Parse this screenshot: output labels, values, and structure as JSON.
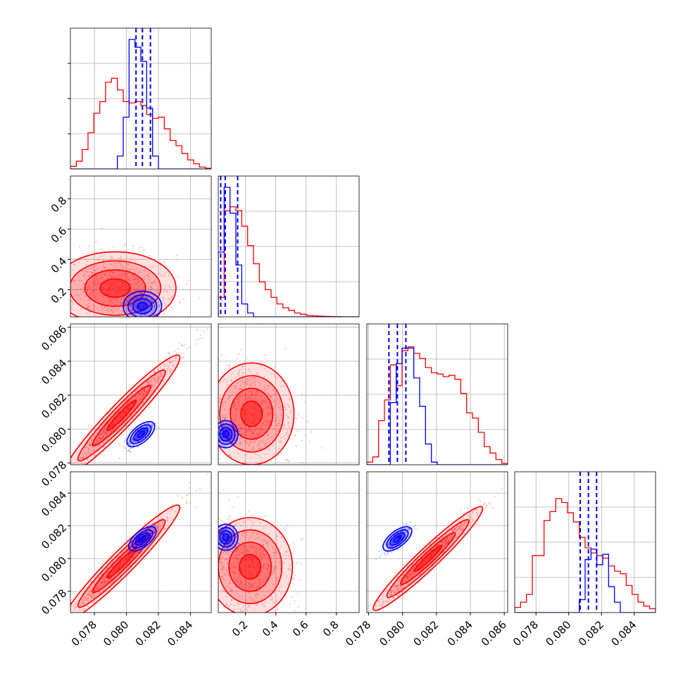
{
  "chart_data": {
    "type": "corner",
    "colors": {
      "red": "#ff0000",
      "blue": "#0000ff",
      "grid": "#b0b0b0",
      "frame": "#000000"
    },
    "parameters": [
      {
        "range": [
          0.0765,
          0.0853
        ],
        "ticks": [
          "0.078",
          "0.080",
          "0.082",
          "0.084"
        ],
        "tick_values": [
          0.078,
          0.08,
          0.082,
          0.084
        ]
      },
      {
        "range": [
          0.02,
          0.95
        ],
        "ticks": [
          "0.2",
          "0.4",
          "0.6",
          "0.8"
        ],
        "tick_values": [
          0.2,
          0.4,
          0.6,
          0.8
        ]
      },
      {
        "range": [
          0.0779,
          0.0862
        ],
        "ticks": [
          "0.078",
          "0.080",
          "0.082",
          "0.084",
          "0.086"
        ],
        "tick_values": [
          0.078,
          0.08,
          0.082,
          0.084,
          0.086
        ]
      },
      {
        "range": [
          0.0767,
          0.0853
        ],
        "ticks": [
          "0.078",
          "0.080",
          "0.082",
          "0.084"
        ],
        "tick_values": [
          0.078,
          0.08,
          0.082,
          0.084
        ]
      }
    ],
    "series": [
      {
        "color": "red",
        "histograms": [
          {
            "edges": [
              0.0765,
              0.0853
            ],
            "counts": [
              0.02,
              0.06,
              0.15,
              0.28,
              0.43,
              0.52,
              0.67,
              0.7,
              0.61,
              0.52,
              0.51,
              0.52,
              0.49,
              0.42,
              0.39,
              0.4,
              0.31,
              0.22,
              0.18,
              0.12,
              0.07,
              0.04,
              0.015,
              0.005
            ]
          },
          {
            "edges": [
              0.02,
              0.95
            ],
            "counts": [
              0.15,
              0.82,
              0.85,
              0.82,
              0.7,
              0.55,
              0.41,
              0.27,
              0.21,
              0.15,
              0.1,
              0.07,
              0.05,
              0.03,
              0.02,
              0.01,
              0.008,
              0.005,
              0.003,
              0.002,
              0.001,
              0.0,
              0.0,
              0.0
            ]
          },
          {
            "edges": [
              0.0779,
              0.0862
            ],
            "counts": [
              0.02,
              0.06,
              0.34,
              0.5,
              0.77,
              0.61,
              0.88,
              0.91,
              0.86,
              0.82,
              0.75,
              0.71,
              0.7,
              0.68,
              0.69,
              0.66,
              0.55,
              0.4,
              0.36,
              0.25,
              0.14,
              0.09,
              0.04,
              0.01
            ]
          },
          {
            "edges": [
              0.0767,
              0.0853
            ],
            "counts": [
              0.04,
              0.08,
              0.14,
              0.44,
              0.44,
              0.71,
              0.78,
              0.88,
              0.85,
              0.77,
              0.7,
              0.58,
              0.5,
              0.46,
              0.44,
              0.42,
              0.36,
              0.32,
              0.3,
              0.21,
              0.14,
              0.08,
              0.05,
              0.03
            ]
          }
        ],
        "quantile_lines": []
      },
      {
        "color": "blue",
        "histograms": [
          {
            "edges": [
              0.0765,
              0.0853
            ],
            "counts": [
              0,
              0,
              0,
              0,
              0,
              0,
              0,
              0,
              0.1,
              0.4,
              1.0,
              0.94,
              0.83,
              0.47,
              0.1,
              0,
              0,
              0,
              0,
              0,
              0,
              0,
              0,
              0
            ]
          },
          {
            "edges": [
              0.02,
              0.95
            ],
            "counts": [
              0.5,
              1.0,
              0.8,
              0.4,
              0.1,
              0.03,
              0,
              0,
              0,
              0,
              0,
              0,
              0,
              0,
              0,
              0,
              0,
              0,
              0,
              0,
              0,
              0,
              0,
              0
            ]
          },
          {
            "edges": [
              0.0779,
              0.0862
            ],
            "counts": [
              0,
              0,
              0,
              0,
              0.48,
              0.78,
              0.9,
              0.9,
              0.67,
              0.45,
              0.16,
              0.02,
              0,
              0,
              0,
              0,
              0,
              0,
              0,
              0,
              0,
              0,
              0,
              0
            ]
          },
          {
            "edges": [
              0.0767,
              0.0853
            ],
            "counts": [
              0,
              0,
              0,
              0,
              0,
              0,
              0,
              0,
              0,
              0,
              0,
              0.1,
              0.41,
              0.49,
              0.37,
              0.45,
              0.2,
              0.08,
              0,
              0,
              0,
              0,
              0,
              0
            ]
          }
        ],
        "quantile_lines": [
          [
            0.0806,
            0.081,
            0.0815
          ],
          [
            0.036,
            0.066,
            0.148
          ],
          [
            0.0792,
            0.0797,
            0.0802
          ],
          [
            0.0807,
            0.0812,
            0.0817
          ]
        ]
      }
    ],
    "scatter_clouds": [
      {
        "row": 1,
        "col": 0,
        "color": "red",
        "center": [
          0.0793,
          0.21
        ],
        "sd": [
          0.0019,
          0.12
        ],
        "corr": -0.1
      },
      {
        "row": 1,
        "col": 0,
        "color": "blue",
        "center": [
          0.081,
          0.09
        ],
        "sd": [
          0.0006,
          0.05
        ],
        "corr": 0.0
      },
      {
        "row": 2,
        "col": 0,
        "color": "red",
        "center": [
          0.0797,
          0.0808
        ],
        "sd": [
          0.0018,
          0.0018
        ],
        "corr": 0.98
      },
      {
        "row": 2,
        "col": 0,
        "color": "blue",
        "center": [
          0.0809,
          0.0797
        ],
        "sd": [
          0.0004,
          0.0004
        ],
        "corr": 0.8
      },
      {
        "row": 2,
        "col": 1,
        "color": "red",
        "center": [
          0.24,
          0.0809
        ],
        "sd": [
          0.14,
          0.0015
        ],
        "corr": -0.1
      },
      {
        "row": 2,
        "col": 1,
        "color": "blue",
        "center": [
          0.07,
          0.0797
        ],
        "sd": [
          0.04,
          0.0004
        ],
        "corr": 0.0
      },
      {
        "row": 3,
        "col": 0,
        "color": "red",
        "center": [
          0.0797,
          0.0797
        ],
        "sd": [
          0.0018,
          0.0018
        ],
        "corr": 0.98
      },
      {
        "row": 3,
        "col": 0,
        "color": "blue",
        "center": [
          0.081,
          0.0812
        ],
        "sd": [
          0.0004,
          0.0004
        ],
        "corr": 0.8
      },
      {
        "row": 3,
        "col": 1,
        "color": "red",
        "center": [
          0.23,
          0.0795
        ],
        "sd": [
          0.14,
          0.0015
        ],
        "corr": -0.1
      },
      {
        "row": 3,
        "col": 1,
        "color": "blue",
        "center": [
          0.07,
          0.0813
        ],
        "sd": [
          0.04,
          0.0004
        ],
        "corr": 0.0
      },
      {
        "row": 3,
        "col": 2,
        "color": "red",
        "center": [
          0.0815,
          0.08
        ],
        "sd": [
          0.0016,
          0.0016
        ],
        "corr": 0.98
      },
      {
        "row": 3,
        "col": 2,
        "color": "blue",
        "center": [
          0.0797,
          0.0812
        ],
        "sd": [
          0.0004,
          0.0004
        ],
        "corr": 0.8
      }
    ],
    "xlabel": "",
    "ylabel": "",
    "title": "",
    "grid": true
  }
}
